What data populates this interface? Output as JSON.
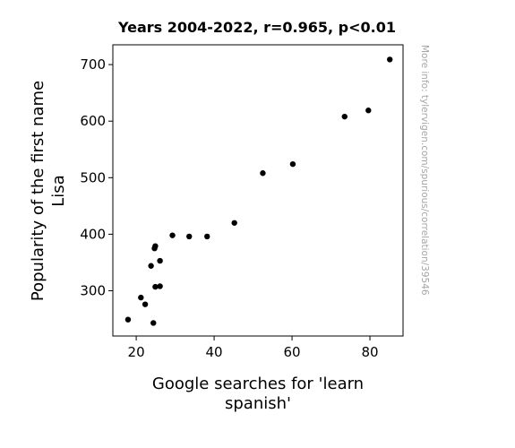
{
  "chart_data": {
    "type": "scatter",
    "title": "Years 2004-2022, r=0.965, p<0.01",
    "xlabel": [
      "Google searches for 'learn",
      "spanish'"
    ],
    "ylabel": [
      "Popularity of the first name",
      "Lisa"
    ],
    "watermark": "More info: tylervigen.com/spurious/correlation/39546",
    "xlim": [
      14,
      88.5
    ],
    "ylim": [
      220,
      735
    ],
    "xticks": [
      20,
      40,
      60,
      80
    ],
    "yticks": [
      300,
      400,
      500,
      600,
      700
    ],
    "grid": false,
    "point_color": "#000000",
    "points": [
      {
        "x": 17.9,
        "y": 249
      },
      {
        "x": 21.2,
        "y": 288
      },
      {
        "x": 22.3,
        "y": 276
      },
      {
        "x": 23.8,
        "y": 344
      },
      {
        "x": 24.4,
        "y": 243
      },
      {
        "x": 24.7,
        "y": 375
      },
      {
        "x": 24.9,
        "y": 379
      },
      {
        "x": 24.9,
        "y": 307
      },
      {
        "x": 26.1,
        "y": 308
      },
      {
        "x": 26.1,
        "y": 353
      },
      {
        "x": 29.3,
        "y": 398
      },
      {
        "x": 33.6,
        "y": 396
      },
      {
        "x": 38.2,
        "y": 396
      },
      {
        "x": 45.2,
        "y": 420
      },
      {
        "x": 52.5,
        "y": 508
      },
      {
        "x": 60.2,
        "y": 524
      },
      {
        "x": 73.5,
        "y": 608
      },
      {
        "x": 79.6,
        "y": 619
      },
      {
        "x": 85.1,
        "y": 709
      }
    ]
  }
}
